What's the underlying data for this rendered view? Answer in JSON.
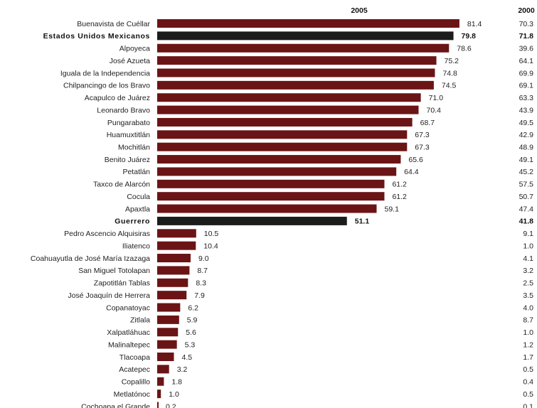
{
  "chart_data": {
    "type": "bar",
    "orientation": "horizontal",
    "series": [
      {
        "name": "2005"
      },
      {
        "name": "2000"
      }
    ],
    "colors": {
      "bar": "#6b1416",
      "highlight_bar": "#1c1c1c"
    },
    "rows": [
      {
        "category": "Buenavista de Cuéllar",
        "v2005": 81.4,
        "v2005_label": "81.4",
        "v2000": "70.3",
        "bold": false
      },
      {
        "category": "Estados Unidos Mexicanos",
        "v2005": 79.8,
        "v2005_label": "79.8",
        "v2000": "71.8",
        "bold": true
      },
      {
        "category": "Alpoyeca",
        "v2005": 78.6,
        "v2005_label": "78.6",
        "v2000": "39.6",
        "bold": false
      },
      {
        "category": "José Azueta",
        "v2005": 75.2,
        "v2005_label": "75.2",
        "v2000": "64.1",
        "bold": false
      },
      {
        "category": "Iguala de la Independencia",
        "v2005": 74.8,
        "v2005_label": "74.8",
        "v2000": "69.9",
        "bold": false
      },
      {
        "category": "Chilpancingo de los Bravo",
        "v2005": 74.5,
        "v2005_label": "74.5",
        "v2000": "69.1",
        "bold": false
      },
      {
        "category": "Acapulco de Juárez",
        "v2005": 71.0,
        "v2005_label": "71.0",
        "v2000": "63.3",
        "bold": false
      },
      {
        "category": "Leonardo Bravo",
        "v2005": 70.4,
        "v2005_label": "70.4",
        "v2000": "43.9",
        "bold": false
      },
      {
        "category": "Pungarabato",
        "v2005": 68.7,
        "v2005_label": "68.7",
        "v2000": "49.5",
        "bold": false
      },
      {
        "category": "Huamuxtitlán",
        "v2005": 67.3,
        "v2005_label": "67.3",
        "v2000": "42.9",
        "bold": false
      },
      {
        "category": "Mochitlán",
        "v2005": 67.3,
        "v2005_label": "67.3",
        "v2000": "48.9",
        "bold": false
      },
      {
        "category": "Benito Juárez",
        "v2005": 65.6,
        "v2005_label": "65.6",
        "v2000": "49.1",
        "bold": false
      },
      {
        "category": "Petatlán",
        "v2005": 64.4,
        "v2005_label": "64.4",
        "v2000": "45.2",
        "bold": false
      },
      {
        "category": "Taxco de Alarcón",
        "v2005": 61.2,
        "v2005_label": "61.2",
        "v2000": "57.5",
        "bold": false
      },
      {
        "category": "Cocula",
        "v2005": 61.2,
        "v2005_label": "61.2",
        "v2000": "50.7",
        "bold": false
      },
      {
        "category": "Apaxtla",
        "v2005": 59.1,
        "v2005_label": "59.1",
        "v2000": "47.4",
        "bold": false
      },
      {
        "category": "Guerrero",
        "v2005": 51.1,
        "v2005_label": "51.1",
        "v2000": "41.8",
        "bold": true
      },
      {
        "category": "Pedro Ascencio Alquisiras",
        "v2005": 10.5,
        "v2005_label": "10.5",
        "v2000": "9.1",
        "bold": false
      },
      {
        "category": "Iliatenco",
        "v2005": 10.4,
        "v2005_label": "10.4",
        "v2000": "1.0",
        "bold": false
      },
      {
        "category": "Coahuayutla de José María Izazaga",
        "v2005": 9.0,
        "v2005_label": "9.0",
        "v2000": "4.1",
        "bold": false
      },
      {
        "category": "San Miguel Totolapan",
        "v2005": 8.7,
        "v2005_label": "8.7",
        "v2000": "3.2",
        "bold": false
      },
      {
        "category": "Zapotitlán Tablas",
        "v2005": 8.3,
        "v2005_label": "8.3",
        "v2000": "2.5",
        "bold": false
      },
      {
        "category": "José Joaquín de Herrera",
        "v2005": 7.9,
        "v2005_label": "7.9",
        "v2000": "3.5",
        "bold": false
      },
      {
        "category": "Copanatoyac",
        "v2005": 6.2,
        "v2005_label": "6.2",
        "v2000": "4.0",
        "bold": false
      },
      {
        "category": "Zitlala",
        "v2005": 5.9,
        "v2005_label": "5.9",
        "v2000": "8.7",
        "bold": false
      },
      {
        "category": "Xalpatláhuac",
        "v2005": 5.6,
        "v2005_label": "5.6",
        "v2000": "1.0",
        "bold": false
      },
      {
        "category": "Malinaltepec",
        "v2005": 5.3,
        "v2005_label": "5.3",
        "v2000": "1.2",
        "bold": false
      },
      {
        "category": "Tlacoapa",
        "v2005": 4.5,
        "v2005_label": "4.5",
        "v2000": "1.7",
        "bold": false
      },
      {
        "category": "Acatepec",
        "v2005": 3.2,
        "v2005_label": "3.2",
        "v2000": "0.5",
        "bold": false
      },
      {
        "category": "Copalillo",
        "v2005": 1.8,
        "v2005_label": "1.8",
        "v2000": "0.4",
        "bold": false
      },
      {
        "category": "Metlatónoc",
        "v2005": 1.0,
        "v2005_label": "1.0",
        "v2000": "0.5",
        "bold": false
      },
      {
        "category": "Cochoapa el Grande",
        "v2005": 0.2,
        "v2005_label": "0.2",
        "v2000": "0.1",
        "bold": false
      }
    ]
  }
}
